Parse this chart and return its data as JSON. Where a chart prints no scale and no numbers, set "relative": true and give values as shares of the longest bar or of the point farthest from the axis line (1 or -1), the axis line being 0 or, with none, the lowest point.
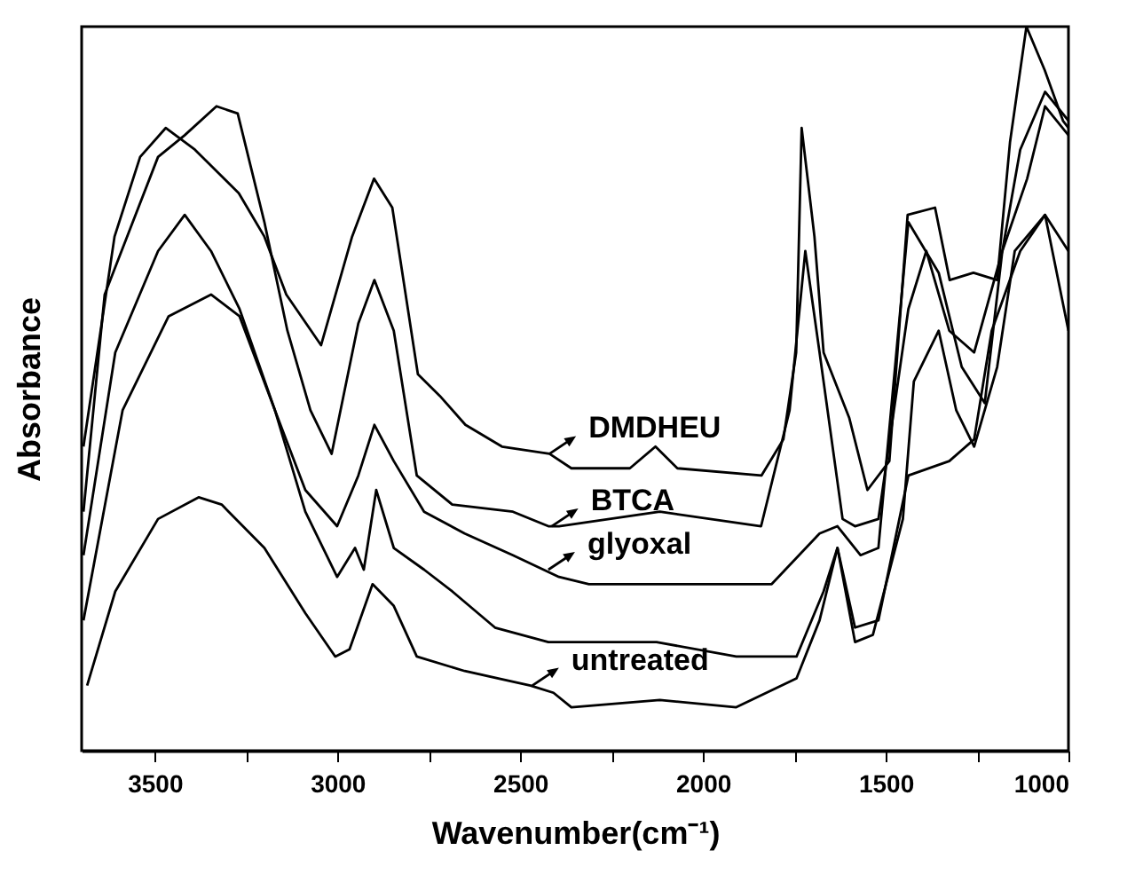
{
  "chart_data": {
    "type": "line",
    "relative": true,
    "xlabel": "Wavenumber(cm⁻¹)",
    "ylabel": "Absorbance",
    "xlim": [
      3700,
      1000
    ],
    "xticks": [
      3500,
      {
        "value": 3250,
        "label": null
      },
      3000,
      {
        "value": 2750,
        "label": null
      },
      2500,
      {
        "value": 2250,
        "label": null
      },
      2000,
      {
        "value": 1750,
        "label": null
      },
      1500,
      {
        "value": 1250,
        "label": null
      },
      1000
    ],
    "grid": false,
    "series": [
      {
        "color": "#000000",
        "x": [
          3695,
          3610,
          3540,
          3470,
          3390,
          3330,
          3270,
          3200,
          3140,
          3045,
          2960,
          2900,
          2850,
          2780,
          2720,
          2650,
          2550,
          2420,
          2360,
          2200,
          2130,
          2070,
          1840,
          1780,
          1745,
          1730,
          1695,
          1670,
          1600,
          1550,
          1490,
          1440,
          1365,
          1325,
          1260,
          1195,
          1160,
          1115,
          1065,
          1015,
          1000
        ],
        "values": [
          0.42,
          0.71,
          0.82,
          0.86,
          0.83,
          0.8,
          0.77,
          0.71,
          0.63,
          0.56,
          0.71,
          0.79,
          0.75,
          0.52,
          0.49,
          0.45,
          0.42,
          0.41,
          0.39,
          0.39,
          0.42,
          0.39,
          0.38,
          0.43,
          0.55,
          0.86,
          0.71,
          0.55,
          0.46,
          0.36,
          0.4,
          0.74,
          0.75,
          0.65,
          0.66,
          0.65,
          0.84,
          1.0,
          0.94,
          0.87,
          0.86
        ]
      },
      {
        "color": "#000000",
        "x": [
          3695,
          3637,
          3491,
          3418,
          3331,
          3273,
          3200,
          3137,
          3074,
          3016,
          2943,
          2899,
          2846,
          2783,
          2686,
          2520,
          2423,
          2394,
          2118,
          1841,
          1763,
          1720,
          1681,
          1618,
          1584,
          1520,
          1438,
          1389,
          1326,
          1258,
          1181,
          1132,
          1064,
          1000
        ],
        "values": [
          0.33,
          0.63,
          0.82,
          0.85,
          0.89,
          0.88,
          0.73,
          0.58,
          0.47,
          0.41,
          0.59,
          0.65,
          0.58,
          0.38,
          0.34,
          0.33,
          0.31,
          0.31,
          0.33,
          0.31,
          0.47,
          0.69,
          0.55,
          0.32,
          0.31,
          0.32,
          0.61,
          0.69,
          0.58,
          0.55,
          0.69,
          0.83,
          0.91,
          0.87
        ]
      },
      {
        "color": "#000000",
        "x": [
          3695,
          3608,
          3491,
          3418,
          3346,
          3268,
          3171,
          3088,
          3001,
          2943,
          2899,
          2846,
          2763,
          2652,
          2520,
          2394,
          2312,
          2069,
          1812,
          1681,
          1632,
          1569,
          1520,
          1438,
          1355,
          1292,
          1229,
          1181,
          1113,
          1064,
          1000
        ],
        "values": [
          0.27,
          0.55,
          0.69,
          0.74,
          0.69,
          0.61,
          0.47,
          0.36,
          0.31,
          0.38,
          0.45,
          0.4,
          0.33,
          0.3,
          0.27,
          0.24,
          0.23,
          0.23,
          0.23,
          0.3,
          0.31,
          0.27,
          0.28,
          0.73,
          0.66,
          0.53,
          0.48,
          0.69,
          0.79,
          0.89,
          0.85
        ]
      },
      {
        "color": "#000000",
        "x": [
          3695,
          3588,
          3462,
          3346,
          3268,
          3171,
          3088,
          3001,
          2952,
          2928,
          2894,
          2846,
          2763,
          2686,
          2569,
          2423,
          2127,
          1909,
          1744,
          1670,
          1632,
          1584,
          1535,
          1453,
          1423,
          1355,
          1307,
          1258,
          1195,
          1147,
          1064,
          1000
        ],
        "values": [
          0.18,
          0.47,
          0.6,
          0.63,
          0.6,
          0.47,
          0.33,
          0.24,
          0.28,
          0.25,
          0.36,
          0.28,
          0.25,
          0.22,
          0.17,
          0.15,
          0.15,
          0.13,
          0.13,
          0.22,
          0.28,
          0.15,
          0.16,
          0.32,
          0.51,
          0.58,
          0.47,
          0.42,
          0.53,
          0.69,
          0.74,
          0.69
        ]
      },
      {
        "color": "#000000",
        "x": [
          3685,
          3608,
          3491,
          3380,
          3317,
          3200,
          3088,
          3006,
          2967,
          2904,
          2846,
          2783,
          2652,
          2472,
          2409,
          2360,
          2118,
          1909,
          1744,
          1681,
          1632,
          1584,
          1520,
          1438,
          1326,
          1258,
          1210,
          1132,
          1064,
          1000
        ],
        "values": [
          0.09,
          0.22,
          0.32,
          0.35,
          0.34,
          0.28,
          0.19,
          0.13,
          0.14,
          0.23,
          0.2,
          0.13,
          0.11,
          0.09,
          0.08,
          0.06,
          0.07,
          0.06,
          0.1,
          0.18,
          0.28,
          0.17,
          0.18,
          0.38,
          0.4,
          0.43,
          0.58,
          0.69,
          0.74,
          0.58
        ]
      }
    ],
    "annotations": [
      {
        "text": "DMDHEU",
        "x": 2420,
        "y": 0.41
      },
      {
        "text": "BTCA",
        "x": 2414,
        "y": 0.31
      },
      {
        "text": "glyoxal",
        "x": 2423,
        "y": 0.25
      },
      {
        "text": "untreated",
        "x": 2467,
        "y": 0.09
      }
    ]
  }
}
